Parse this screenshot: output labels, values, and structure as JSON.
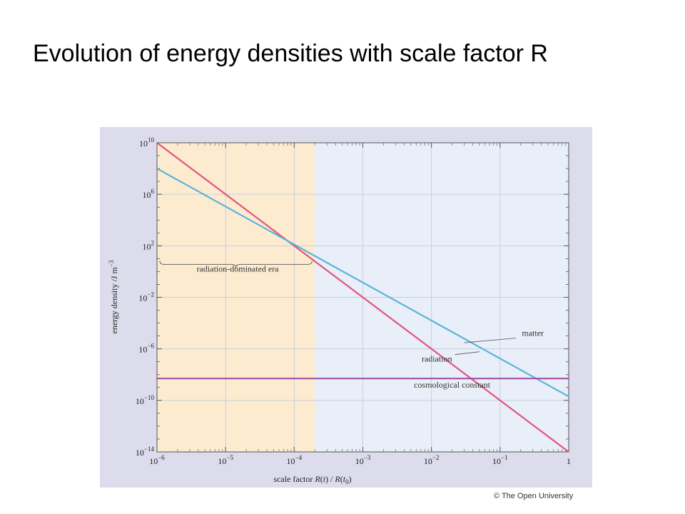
{
  "slide": {
    "title": "Evolution of energy densities with scale factor R",
    "credit": "© The Open University"
  },
  "colors": {
    "panel_background": "#dcdcec",
    "radiation_era_fill": "#fdebd0",
    "later_era_fill": "#e9eff8",
    "radiation": "#e0557f",
    "matter": "#5ab4dc",
    "cosmological_constant": "#a34ea3"
  },
  "chart_data": {
    "type": "line",
    "title": "",
    "xlabel": "scale factor R(t) / R(t0)",
    "ylabel": "energy density /J m^-3",
    "xscale": "log",
    "yscale": "log",
    "xlim": [
      1e-06,
      1
    ],
    "ylim": [
      1e-14,
      10000000000.0
    ],
    "x_ticks": [
      {
        "value": 1e-06,
        "base": "10",
        "exp": "−6"
      },
      {
        "value": 1e-05,
        "base": "10",
        "exp": "−5"
      },
      {
        "value": 0.0001,
        "base": "10",
        "exp": "−4"
      },
      {
        "value": 0.001,
        "base": "10",
        "exp": "−3"
      },
      {
        "value": 0.01,
        "base": "10",
        "exp": "−2"
      },
      {
        "value": 0.1,
        "base": "10",
        "exp": "−1"
      },
      {
        "value": 1,
        "base": "1",
        "exp": ""
      }
    ],
    "y_ticks": [
      {
        "value": 10000000000.0,
        "base": "10",
        "exp": "10"
      },
      {
        "value": 1000000.0,
        "base": "10",
        "exp": "6"
      },
      {
        "value": 100.0,
        "base": "10",
        "exp": "2"
      },
      {
        "value": 0.01,
        "base": "10",
        "exp": "−2"
      },
      {
        "value": 1e-06,
        "base": "10",
        "exp": "−6"
      },
      {
        "value": 1e-10,
        "base": "10",
        "exp": "−10"
      },
      {
        "value": 1e-14,
        "base": "10",
        "exp": "−14"
      }
    ],
    "grid": true,
    "legend": "none",
    "series": [
      {
        "name": "radiation",
        "color": "#e0557f",
        "x": [
          1e-06,
          1
        ],
        "y": [
          10000000000.0,
          1e-14
        ]
      },
      {
        "name": "matter",
        "color": "#5ab4dc",
        "x": [
          1e-06,
          1
        ],
        "y": [
          100000000.0,
          2e-10
        ]
      },
      {
        "name": "cosmological constant",
        "color": "#a34ea3",
        "x": [
          1e-06,
          1
        ],
        "y": [
          5e-09,
          5e-09
        ]
      }
    ],
    "regions": [
      {
        "label": "radiation-dominated era",
        "x_start": 1e-06,
        "x_end": 0.0002,
        "color": "#fdebd0"
      },
      {
        "label": "",
        "x_start": 0.0002,
        "x_end": 1,
        "color": "#e9eff8"
      }
    ],
    "annotations": [
      {
        "text": "matter",
        "x": 0.3,
        "y": 1e-05
      },
      {
        "text": "radiation",
        "x": 0.012,
        "y": 1e-07
      },
      {
        "text": "cosmological constant",
        "x": 0.02,
        "y": 1e-09
      },
      {
        "text": "radiation-dominated era",
        "x": 1.5e-05,
        "y": 1.0
      }
    ]
  }
}
